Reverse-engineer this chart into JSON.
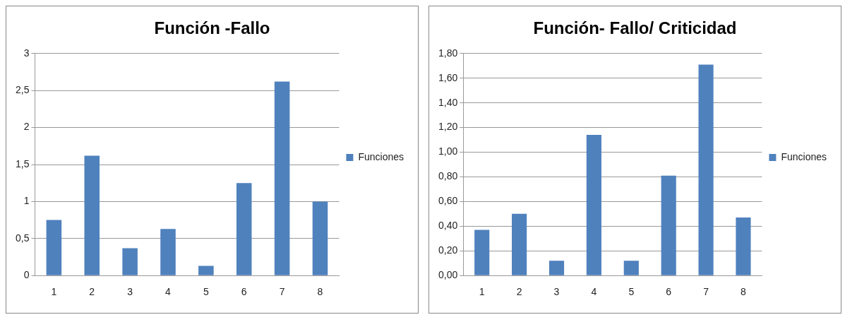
{
  "chart_data": [
    {
      "type": "bar",
      "title": "Función -Fallo",
      "categories": [
        "1",
        "2",
        "3",
        "4",
        "5",
        "6",
        "7",
        "8"
      ],
      "series": [
        {
          "name": "Funciones",
          "color": "#4f81bd",
          "values": [
            0.75,
            1.62,
            0.37,
            0.63,
            0.13,
            1.25,
            2.62,
            1.0
          ]
        }
      ],
      "ylim": [
        0,
        3
      ],
      "yticks": [
        0,
        {
          "value": 0.5,
          "label": "0,5"
        },
        1,
        {
          "value": 1.5,
          "label": "1,5"
        },
        2,
        {
          "value": 2.5,
          "label": "2,5"
        },
        3
      ],
      "grid": "y",
      "legend": "right"
    },
    {
      "type": "bar",
      "title": "Función- Fallo/ Criticidad",
      "categories": [
        "1",
        "2",
        "3",
        "4",
        "5",
        "6",
        "7",
        "8"
      ],
      "series": [
        {
          "name": "Funciones",
          "color": "#4f81bd",
          "values": [
            0.37,
            0.5,
            0.12,
            1.14,
            0.12,
            0.81,
            1.71,
            0.47
          ]
        }
      ],
      "ylim": [
        0,
        1.8
      ],
      "yticks": [
        {
          "value": 0,
          "label": "0,00"
        },
        {
          "value": 0.2,
          "label": "0,20"
        },
        {
          "value": 0.4,
          "label": "0,40"
        },
        {
          "value": 0.6,
          "label": "0,60"
        },
        {
          "value": 0.8,
          "label": "0,80"
        },
        {
          "value": 1,
          "label": "1,00"
        },
        {
          "value": 1.2,
          "label": "1,20"
        },
        {
          "value": 1.4,
          "label": "1,40"
        },
        {
          "value": 1.6,
          "label": "1,60"
        },
        {
          "value": 1.8,
          "label": "1,80"
        }
      ],
      "grid": "y",
      "legend": "right"
    }
  ]
}
